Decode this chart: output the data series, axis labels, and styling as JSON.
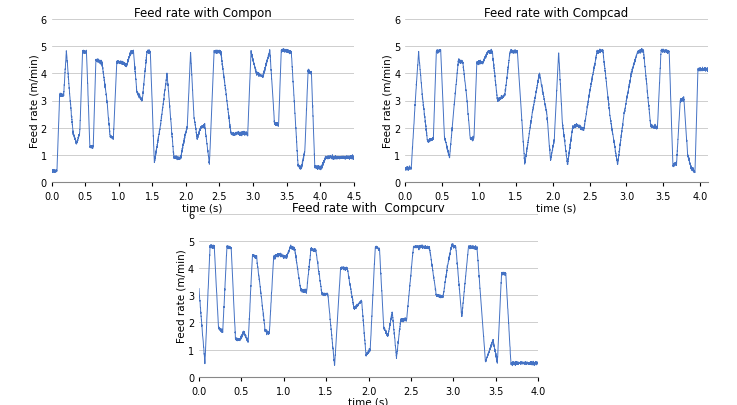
{
  "title1": "Feed rate with Compon",
  "title2": "Feed rate with Compcad",
  "title3": "Feed rate with  Compcurv",
  "ylabel": "Feed rate (m/min)",
  "xlabel": "time (s)",
  "xlim1": [
    0,
    4.5
  ],
  "xlim2": [
    0,
    4.1
  ],
  "xlim3": [
    0,
    4.0
  ],
  "xticks1": [
    0,
    0.5,
    1,
    1.5,
    2,
    2.5,
    3,
    3.5,
    4,
    4.5
  ],
  "xticks2": [
    0,
    0.5,
    1,
    1.5,
    2,
    2.5,
    3,
    3.5,
    4
  ],
  "xticks3": [
    0,
    0.5,
    1,
    1.5,
    2,
    2.5,
    3,
    3.5,
    4
  ],
  "ylim": [
    0,
    6
  ],
  "yticks": [
    0,
    1,
    2,
    3,
    4,
    5,
    6
  ],
  "line_color": "#4472C4",
  "line_width": 0.7,
  "bg_color": "#ffffff",
  "grid_color": "#bbbbbb",
  "title_fontsize": 8.5,
  "label_fontsize": 7.5,
  "tick_fontsize": 7
}
